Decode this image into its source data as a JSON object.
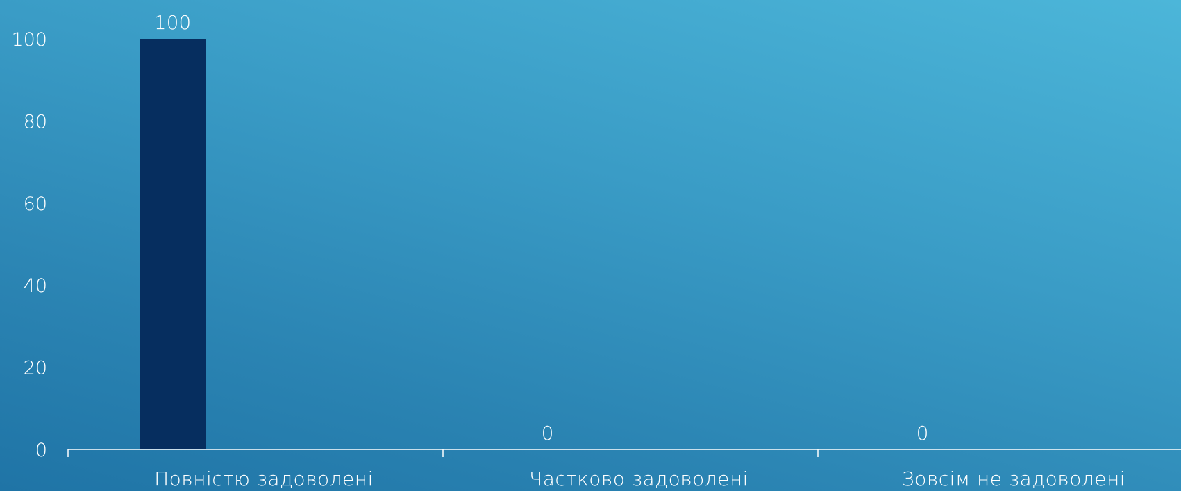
{
  "chart_data": {
    "type": "bar",
    "categories": [
      "Повністю задоволені",
      "Частково задоволені",
      "Зовсім не задоволені"
    ],
    "series": [
      {
        "values": [
          100,
          0,
          0
        ],
        "color": "#062e5f"
      }
    ],
    "data_labels": [
      "100",
      "0",
      "0"
    ],
    "y_ticks": [
      "0",
      "20",
      "40",
      "60",
      "80",
      "100"
    ],
    "ylim": [
      0,
      100
    ],
    "grid": false,
    "legend": "none",
    "title": "",
    "xlabel": "",
    "ylabel": ""
  }
}
